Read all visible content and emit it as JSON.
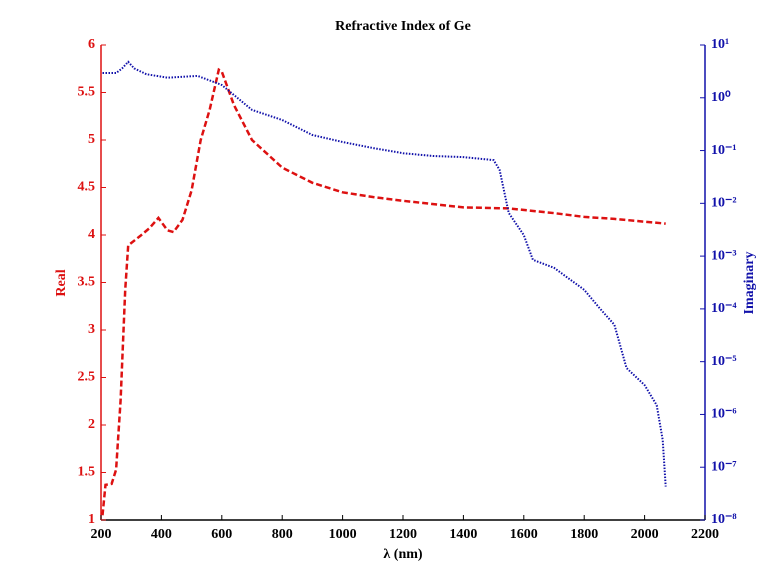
{
  "chart_data": {
    "type": "line",
    "title": "Refractive Index of Ge",
    "x_label": "λ (nm)",
    "y_label": "Real",
    "y2_label": "Imaginary",
    "xlim": [
      200,
      2200
    ],
    "xticks": [
      200,
      400,
      600,
      800,
      1000,
      1200,
      1400,
      1600,
      1800,
      2000,
      2200
    ],
    "ylim": [
      1,
      6
    ],
    "yticks": [
      1,
      1.5,
      2,
      2.5,
      3,
      3.5,
      4,
      4.5,
      5,
      5.5,
      6
    ],
    "y2lim": [
      1e-08,
      10
    ],
    "y2_log": true,
    "y2ticks": [
      {
        "value": 1e-08,
        "label": "10⁻⁸"
      },
      {
        "value": 1e-07,
        "label": "10⁻⁷"
      },
      {
        "value": 1e-06,
        "label": "10⁻⁶"
      },
      {
        "value": 1e-05,
        "label": "10⁻⁵"
      },
      {
        "value": 0.0001,
        "label": "10⁻⁴"
      },
      {
        "value": 0.001,
        "label": "10⁻³"
      },
      {
        "value": 0.01,
        "label": "10⁻²"
      },
      {
        "value": 0.1,
        "label": "10⁻¹"
      },
      {
        "value": 1,
        "label": "10⁰"
      },
      {
        "value": 10,
        "label": "10¹"
      }
    ],
    "y_color": "#dd1111",
    "y2_color": "#1111aa",
    "series": [
      {
        "color": "#dd1111",
        "dash": "dashed",
        "axis": "y",
        "x": [
          205,
          215,
          235,
          250,
          265,
          280,
          290,
          330,
          360,
          390,
          420,
          440,
          470,
          500,
          530,
          560,
          590,
          600,
          640,
          700,
          800,
          900,
          1000,
          1100,
          1200,
          1400,
          1550,
          1700,
          1800,
          1900,
          2000,
          2070
        ],
        "values": [
          1.05,
          1.37,
          1.38,
          1.53,
          2.26,
          3.42,
          3.89,
          3.99,
          4.07,
          4.18,
          4.05,
          4.03,
          4.16,
          4.47,
          5.0,
          5.32,
          5.74,
          5.72,
          5.37,
          5.0,
          4.71,
          4.55,
          4.45,
          4.4,
          4.36,
          4.29,
          4.28,
          4.23,
          4.19,
          4.17,
          4.14,
          4.12
        ]
      },
      {
        "color": "#1111aa",
        "dash": "dotted",
        "axis": "y2",
        "x": [
          205,
          250,
          270,
          290,
          310,
          350,
          420,
          520,
          600,
          700,
          800,
          900,
          1000,
          1100,
          1200,
          1300,
          1400,
          1500,
          1520,
          1550,
          1600,
          1630,
          1700,
          1800,
          1850,
          1900,
          1940,
          2000,
          2040,
          2060,
          2070
        ],
        "values": [
          2.95,
          2.95,
          3.6,
          4.8,
          3.6,
          2.8,
          2.4,
          2.6,
          1.75,
          0.59,
          0.38,
          0.197,
          0.145,
          0.112,
          0.089,
          0.079,
          0.075,
          0.066,
          0.043,
          0.0066,
          0.0025,
          0.00085,
          0.0006,
          0.00023,
          0.000105,
          5e-05,
          7.6e-06,
          3.6e-06,
          1.5e-06,
          3.3e-07,
          4.3e-08
        ]
      }
    ]
  }
}
